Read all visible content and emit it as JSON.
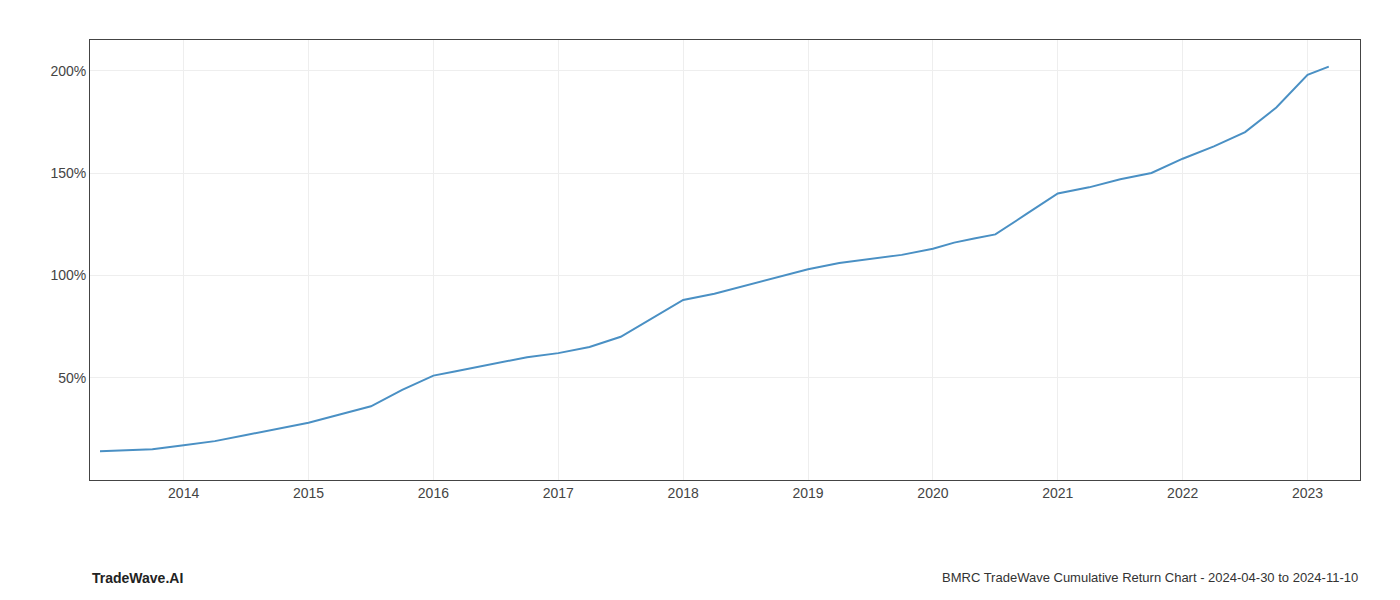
{
  "chart_data": {
    "type": "line",
    "title": "BMRC TradeWave Cumulative Return Chart - 2024-04-30 to 2024-11-10",
    "annotations": [
      "TradeWave.AI"
    ],
    "x": [
      2013.33,
      2013.75,
      2014.0,
      2014.25,
      2014.5,
      2014.75,
      2015.0,
      2015.25,
      2015.5,
      2015.75,
      2016.0,
      2016.17,
      2016.33,
      2016.5,
      2016.75,
      2017.0,
      2017.25,
      2017.5,
      2017.75,
      2018.0,
      2018.25,
      2018.5,
      2018.75,
      2019.0,
      2019.25,
      2019.5,
      2019.75,
      2020.0,
      2020.17,
      2020.33,
      2020.5,
      2020.75,
      2021.0,
      2021.25,
      2021.5,
      2021.75,
      2022.0,
      2022.25,
      2022.5,
      2022.75,
      2023.0,
      2023.17
    ],
    "values": [
      14,
      15,
      17,
      19,
      22,
      25,
      28,
      32,
      36,
      44,
      51,
      53,
      55,
      57,
      60,
      62,
      65,
      70,
      79,
      88,
      91,
      95,
      99,
      103,
      106,
      108,
      110,
      113,
      116,
      118,
      120,
      130,
      140,
      143,
      147,
      150,
      157,
      163,
      170,
      182,
      198,
      202
    ],
    "color": "#4a90c4",
    "xlim": [
      2013.25,
      2023.42
    ],
    "xticks": [
      2014,
      2015,
      2016,
      2017,
      2018,
      2019,
      2020,
      2021,
      2022,
      2023
    ],
    "ylim": [
      0,
      215
    ],
    "yticks": [
      {
        "value": 50,
        "label": "50%"
      },
      {
        "value": 100,
        "label": "100%"
      },
      {
        "value": 150,
        "label": "150%"
      },
      {
        "value": 200,
        "label": "200%"
      }
    ],
    "grid": true
  }
}
